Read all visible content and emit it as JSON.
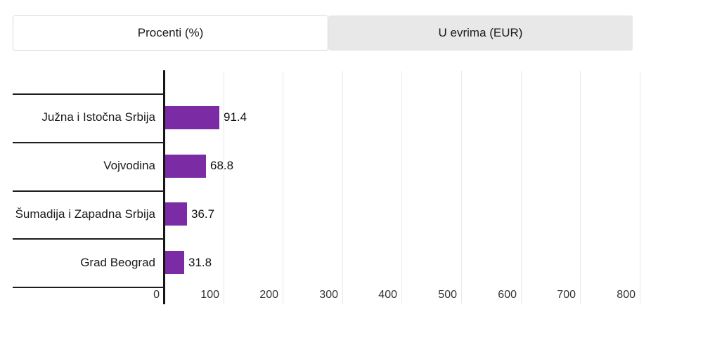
{
  "tabs": [
    {
      "label": "Procenti (%)",
      "active": true
    },
    {
      "label": "U evrima (EUR)",
      "active": false
    }
  ],
  "colors": {
    "bar": "#7b2ba3",
    "axis": "#161616",
    "gridline": "#e8e8e8",
    "tab_active_bg": "#ffffff",
    "tab_inactive_bg": "#e8e8e8",
    "tab_border": "#d9d9d9",
    "text": "#1a1a1a",
    "tick_text": "#333333"
  },
  "chart_data": {
    "type": "bar",
    "orientation": "horizontal",
    "title": "",
    "xlabel": "",
    "ylabel": "",
    "categories": [
      "Južna i Istočna Srbija",
      "Vojvodina",
      "Šumadija i Zapadna Srbija",
      "Grad Beograd"
    ],
    "values": [
      91.4,
      68.8,
      36.7,
      31.8
    ],
    "value_labels": [
      "91.4",
      "68.8",
      "36.7",
      "31.8"
    ],
    "x_ticks": [
      0,
      100,
      200,
      300,
      400,
      500,
      600,
      700,
      800
    ],
    "xlim": [
      0,
      800
    ],
    "grid": true,
    "legend": false,
    "bar_color": "#7b2ba3"
  }
}
